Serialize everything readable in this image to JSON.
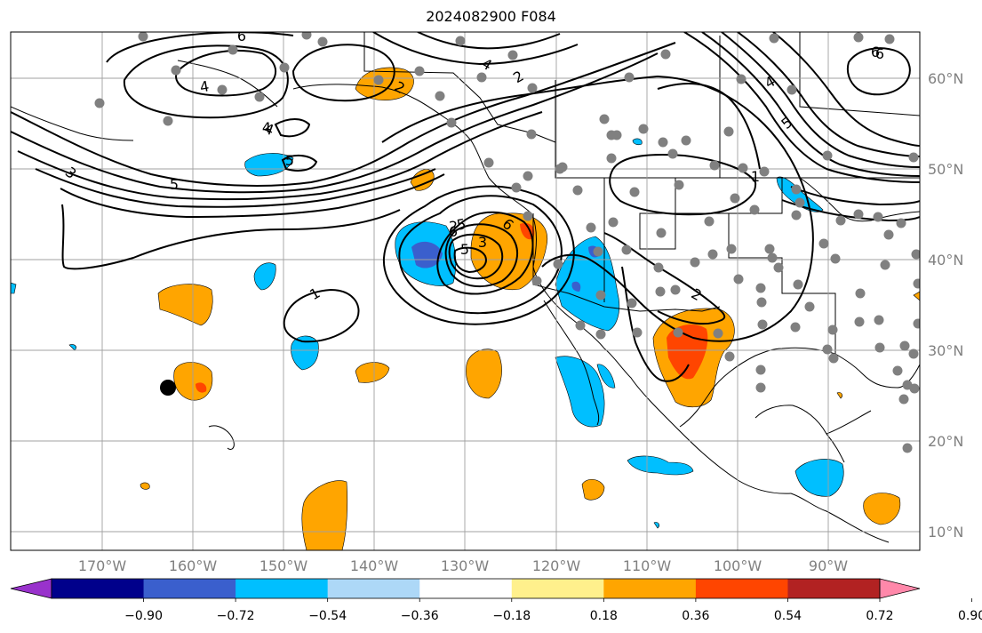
{
  "title": "2024082900 F084",
  "map": {
    "projection": "lat-lon",
    "lon_range": [
      "180°W",
      "80°W"
    ],
    "lat_range": [
      "8°N",
      "65°N"
    ],
    "grid": true,
    "lon_labels": [
      "170°W",
      "160°W",
      "150°W",
      "140°W",
      "130°W",
      "120°W",
      "110°W",
      "100°W",
      "90°W"
    ],
    "lat_labels": [
      "60°N",
      "50°N",
      "40°N",
      "30°N",
      "20°N",
      "10°N"
    ],
    "contour_labels": [
      "6",
      "4",
      "2",
      "4",
      "5",
      "3",
      "4",
      "5",
      "6",
      "3",
      "5",
      "2",
      "6",
      "1",
      "5",
      "4",
      "2",
      "1",
      "2",
      "6",
      "4",
      "5",
      "6"
    ],
    "colors": {
      "contour": "#000000",
      "grid": "#a0a0a0",
      "coast": "#000000",
      "station_dot": "#808080",
      "marker": "#000000"
    }
  },
  "colorbar": {
    "ticks": [
      "−0.90",
      "−0.72",
      "−0.54",
      "−0.36",
      "−0.18",
      "0.18",
      "0.36",
      "0.54",
      "0.72",
      "0.90"
    ],
    "colors": [
      "#9932cc",
      "#00008b",
      "#3a5fcd",
      "#00bfff",
      "#add8f7",
      "#ffffff",
      "#fff08c",
      "#ffa500",
      "#ff4500",
      "#b22222",
      "#ff88aa"
    ],
    "extend": "both"
  }
}
